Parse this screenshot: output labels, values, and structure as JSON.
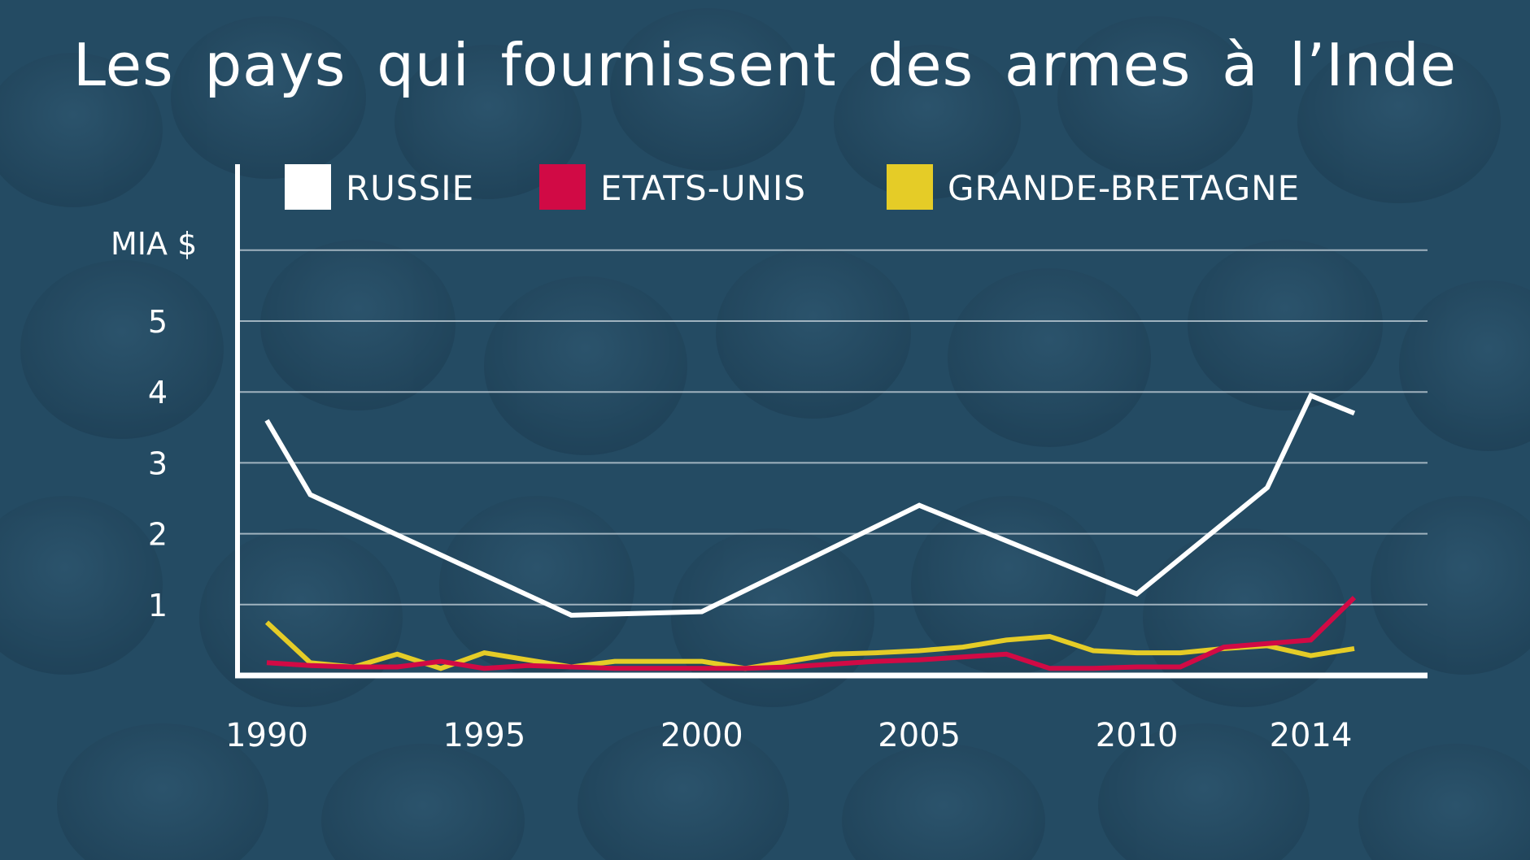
{
  "title": "Les pays qui fournissent des armes à l’Inde",
  "colors": {
    "background": "#244b63",
    "grid": "#c9d6de",
    "axis": "#ffffff",
    "russie": "#ffffff",
    "etats_unis": "#d10a45",
    "grande_bretagne": "#e5cc27"
  },
  "chart_data": {
    "type": "line",
    "title": "Les pays qui fournissent des armes à l’Inde",
    "ylabel": "MIA $",
    "xlabel": "",
    "x_range": [
      1990,
      2015
    ],
    "ylim": [
      0,
      6
    ],
    "x_ticks": [
      "1990",
      "1995",
      "2000",
      "2005",
      "2010",
      "2014"
    ],
    "y_ticks": [
      "1",
      "2",
      "3",
      "4",
      "5"
    ],
    "grid": true,
    "legend_position": "top",
    "series": [
      {
        "name": "RUSSIE",
        "color": "#ffffff",
        "points": [
          [
            1990,
            3.6
          ],
          [
            1991,
            2.55
          ],
          [
            1997,
            0.85
          ],
          [
            2000,
            0.9
          ],
          [
            2005,
            2.4
          ],
          [
            2010,
            1.15
          ],
          [
            2013,
            2.65
          ],
          [
            2014,
            3.95
          ],
          [
            2015,
            3.7
          ]
        ]
      },
      {
        "name": "ETATS-UNIS",
        "color": "#d10a45",
        "points": [
          [
            1990,
            0.18
          ],
          [
            1991,
            0.14
          ],
          [
            1992,
            0.12
          ],
          [
            1993,
            0.12
          ],
          [
            1994,
            0.2
          ],
          [
            1995,
            0.1
          ],
          [
            1996,
            0.14
          ],
          [
            1997,
            0.12
          ],
          [
            1998,
            0.1
          ],
          [
            1999,
            0.1
          ],
          [
            2000,
            0.1
          ],
          [
            2001,
            0.1
          ],
          [
            2002,
            0.12
          ],
          [
            2003,
            0.16
          ],
          [
            2004,
            0.2
          ],
          [
            2005,
            0.22
          ],
          [
            2006,
            0.26
          ],
          [
            2007,
            0.3
          ],
          [
            2008,
            0.1
          ],
          [
            2009,
            0.1
          ],
          [
            2010,
            0.12
          ],
          [
            2011,
            0.12
          ],
          [
            2012,
            0.4
          ],
          [
            2013,
            0.45
          ],
          [
            2014,
            0.5
          ],
          [
            2015,
            1.1
          ]
        ]
      },
      {
        "name": "GRANDE-BRETAGNE",
        "color": "#e5cc27",
        "points": [
          [
            1990,
            0.75
          ],
          [
            1991,
            0.18
          ],
          [
            1992,
            0.12
          ],
          [
            1993,
            0.3
          ],
          [
            1994,
            0.1
          ],
          [
            1995,
            0.32
          ],
          [
            1996,
            0.22
          ],
          [
            1997,
            0.12
          ],
          [
            1998,
            0.2
          ],
          [
            1999,
            0.2
          ],
          [
            2000,
            0.2
          ],
          [
            2001,
            0.1
          ],
          [
            2002,
            0.2
          ],
          [
            2003,
            0.3
          ],
          [
            2004,
            0.32
          ],
          [
            2005,
            0.35
          ],
          [
            2006,
            0.4
          ],
          [
            2007,
            0.5
          ],
          [
            2008,
            0.55
          ],
          [
            2009,
            0.35
          ],
          [
            2010,
            0.32
          ],
          [
            2011,
            0.32
          ],
          [
            2012,
            0.38
          ],
          [
            2013,
            0.42
          ],
          [
            2014,
            0.28
          ],
          [
            2015,
            0.38
          ]
        ]
      }
    ]
  }
}
